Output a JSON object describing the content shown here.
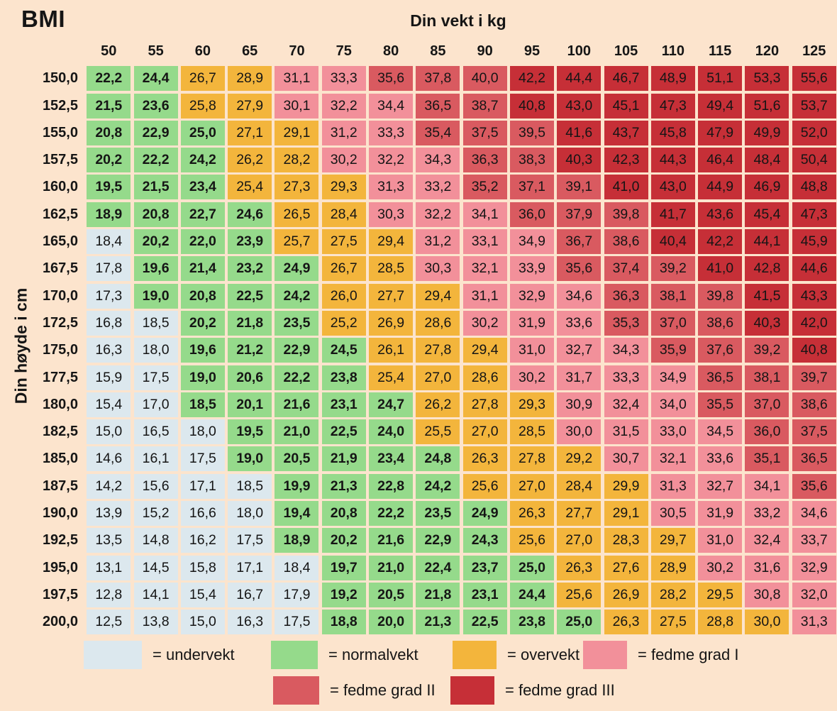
{
  "title": "BMI",
  "axes": {
    "weight": "Din vekt i kg",
    "height": "Din høyde i cm"
  },
  "colors": {
    "background": "#fce4cd",
    "undervekt": "#dce8ee",
    "normalvekt": "#95da8b",
    "overvekt": "#f3b53c",
    "fedme_grad_1": "#f2909a",
    "fedme_grad_2": "#d95a60",
    "fedme_grad_3": "#c62f37"
  },
  "legend": [
    {
      "label": "= undervekt",
      "category": "undervekt"
    },
    {
      "label": "= normalvekt",
      "category": "normalvekt"
    },
    {
      "label": "= overvekt",
      "category": "overvekt"
    },
    {
      "label": "= fedme grad I",
      "category": "fedme_grad_1"
    },
    {
      "label": "= fedme grad II",
      "category": "fedme_grad_2"
    },
    {
      "label": "= fedme grad III",
      "category": "fedme_grad_3"
    }
  ],
  "chart_data": {
    "type": "heatmap",
    "title": "BMI",
    "xlabel": "Din vekt i kg",
    "ylabel": "Din høyde i cm",
    "x": [
      "50",
      "55",
      "60",
      "65",
      "70",
      "75",
      "80",
      "85",
      "90",
      "95",
      "100",
      "105",
      "110",
      "115",
      "120",
      "125"
    ],
    "y": [
      "150,0",
      "152,5",
      "155,0",
      "157,5",
      "160,0",
      "162,5",
      "165,0",
      "167,5",
      "170,0",
      "172,5",
      "175,0",
      "177,5",
      "180,0",
      "182,5",
      "185,0",
      "187,5",
      "190,0",
      "192,5",
      "195,0",
      "197,5",
      "200,0"
    ],
    "category_codes": {
      "U": "undervekt",
      "N": "normalvekt",
      "O": "overvekt",
      "F1": "fedme_grad_1",
      "F2": "fedme_grad_2",
      "F3": "fedme_grad_3"
    },
    "matrix": [
      [
        "22,2",
        "24,4",
        "26,7",
        "28,9",
        "31,1",
        "33,3",
        "35,6",
        "37,8",
        "40,0",
        "42,2",
        "44,4",
        "46,7",
        "48,9",
        "51,1",
        "53,3",
        "55,6"
      ],
      [
        "21,5",
        "23,6",
        "25,8",
        "27,9",
        "30,1",
        "32,2",
        "34,4",
        "36,5",
        "38,7",
        "40,8",
        "43,0",
        "45,1",
        "47,3",
        "49,4",
        "51,6",
        "53,7"
      ],
      [
        "20,8",
        "22,9",
        "25,0",
        "27,1",
        "29,1",
        "31,2",
        "33,3",
        "35,4",
        "37,5",
        "39,5",
        "41,6",
        "43,7",
        "45,8",
        "47,9",
        "49,9",
        "52,0"
      ],
      [
        "20,2",
        "22,2",
        "24,2",
        "26,2",
        "28,2",
        "30,2",
        "32,2",
        "34,3",
        "36,3",
        "38,3",
        "40,3",
        "42,3",
        "44,3",
        "46,4",
        "48,4",
        "50,4"
      ],
      [
        "19,5",
        "21,5",
        "23,4",
        "25,4",
        "27,3",
        "29,3",
        "31,3",
        "33,2",
        "35,2",
        "37,1",
        "39,1",
        "41,0",
        "43,0",
        "44,9",
        "46,9",
        "48,8"
      ],
      [
        "18,9",
        "20,8",
        "22,7",
        "24,6",
        "26,5",
        "28,4",
        "30,3",
        "32,2",
        "34,1",
        "36,0",
        "37,9",
        "39,8",
        "41,7",
        "43,6",
        "45,4",
        "47,3"
      ],
      [
        "18,4",
        "20,2",
        "22,0",
        "23,9",
        "25,7",
        "27,5",
        "29,4",
        "31,2",
        "33,1",
        "34,9",
        "36,7",
        "38,6",
        "40,4",
        "42,2",
        "44,1",
        "45,9"
      ],
      [
        "17,8",
        "19,6",
        "21,4",
        "23,2",
        "24,9",
        "26,7",
        "28,5",
        "30,3",
        "32,1",
        "33,9",
        "35,6",
        "37,4",
        "39,2",
        "41,0",
        "42,8",
        "44,6"
      ],
      [
        "17,3",
        "19,0",
        "20,8",
        "22,5",
        "24,2",
        "26,0",
        "27,7",
        "29,4",
        "31,1",
        "32,9",
        "34,6",
        "36,3",
        "38,1",
        "39,8",
        "41,5",
        "43,3"
      ],
      [
        "16,8",
        "18,5",
        "20,2",
        "21,8",
        "23,5",
        "25,2",
        "26,9",
        "28,6",
        "30,2",
        "31,9",
        "33,6",
        "35,3",
        "37,0",
        "38,6",
        "40,3",
        "42,0"
      ],
      [
        "16,3",
        "18,0",
        "19,6",
        "21,2",
        "22,9",
        "24,5",
        "26,1",
        "27,8",
        "29,4",
        "31,0",
        "32,7",
        "34,3",
        "35,9",
        "37,6",
        "39,2",
        "40,8"
      ],
      [
        "15,9",
        "17,5",
        "19,0",
        "20,6",
        "22,2",
        "23,8",
        "25,4",
        "27,0",
        "28,6",
        "30,2",
        "31,7",
        "33,3",
        "34,9",
        "36,5",
        "38,1",
        "39,7"
      ],
      [
        "15,4",
        "17,0",
        "18,5",
        "20,1",
        "21,6",
        "23,1",
        "24,7",
        "26,2",
        "27,8",
        "29,3",
        "30,9",
        "32,4",
        "34,0",
        "35,5",
        "37,0",
        "38,6"
      ],
      [
        "15,0",
        "16,5",
        "18,0",
        "19,5",
        "21,0",
        "22,5",
        "24,0",
        "25,5",
        "27,0",
        "28,5",
        "30,0",
        "31,5",
        "33,0",
        "34,5",
        "36,0",
        "37,5"
      ],
      [
        "14,6",
        "16,1",
        "17,5",
        "19,0",
        "20,5",
        "21,9",
        "23,4",
        "24,8",
        "26,3",
        "27,8",
        "29,2",
        "30,7",
        "32,1",
        "33,6",
        "35,1",
        "36,5"
      ],
      [
        "14,2",
        "15,6",
        "17,1",
        "18,5",
        "19,9",
        "21,3",
        "22,8",
        "24,2",
        "25,6",
        "27,0",
        "28,4",
        "29,9",
        "31,3",
        "32,7",
        "34,1",
        "35,6"
      ],
      [
        "13,9",
        "15,2",
        "16,6",
        "18,0",
        "19,4",
        "20,8",
        "22,2",
        "23,5",
        "24,9",
        "26,3",
        "27,7",
        "29,1",
        "30,5",
        "31,9",
        "33,2",
        "34,6"
      ],
      [
        "13,5",
        "14,8",
        "16,2",
        "17,5",
        "18,9",
        "20,2",
        "21,6",
        "22,9",
        "24,3",
        "25,6",
        "27,0",
        "28,3",
        "29,7",
        "31,0",
        "32,4",
        "33,7"
      ],
      [
        "13,1",
        "14,5",
        "15,8",
        "17,1",
        "18,4",
        "19,7",
        "21,0",
        "22,4",
        "23,7",
        "25,0",
        "26,3",
        "27,6",
        "28,9",
        "30,2",
        "31,6",
        "32,9"
      ],
      [
        "12,8",
        "14,1",
        "15,4",
        "16,7",
        "17,9",
        "19,2",
        "20,5",
        "21,8",
        "23,1",
        "24,4",
        "25,6",
        "26,9",
        "28,2",
        "29,5",
        "30,8",
        "32,0"
      ],
      [
        "12,5",
        "13,8",
        "15,0",
        "16,3",
        "17,5",
        "18,8",
        "20,0",
        "21,3",
        "22,5",
        "23,8",
        "25,0",
        "26,3",
        "27,5",
        "28,8",
        "30,0",
        "31,3"
      ]
    ],
    "category_matrix": [
      [
        "N",
        "N",
        "O",
        "O",
        "F1",
        "F1",
        "F2",
        "F2",
        "F2",
        "F3",
        "F3",
        "F3",
        "F3",
        "F3",
        "F3",
        "F3"
      ],
      [
        "N",
        "N",
        "O",
        "O",
        "F1",
        "F1",
        "F1",
        "F2",
        "F2",
        "F3",
        "F3",
        "F3",
        "F3",
        "F3",
        "F3",
        "F3"
      ],
      [
        "N",
        "N",
        "N",
        "O",
        "O",
        "F1",
        "F1",
        "F2",
        "F2",
        "F2",
        "F3",
        "F3",
        "F3",
        "F3",
        "F3",
        "F3"
      ],
      [
        "N",
        "N",
        "N",
        "O",
        "O",
        "F1",
        "F1",
        "F1",
        "F2",
        "F2",
        "F3",
        "F3",
        "F3",
        "F3",
        "F3",
        "F3"
      ],
      [
        "N",
        "N",
        "N",
        "O",
        "O",
        "O",
        "F1",
        "F1",
        "F2",
        "F2",
        "F2",
        "F3",
        "F3",
        "F3",
        "F3",
        "F3"
      ],
      [
        "N",
        "N",
        "N",
        "N",
        "O",
        "O",
        "F1",
        "F1",
        "F1",
        "F2",
        "F2",
        "F2",
        "F3",
        "F3",
        "F3",
        "F3"
      ],
      [
        "U",
        "N",
        "N",
        "N",
        "O",
        "O",
        "O",
        "F1",
        "F1",
        "F1",
        "F2",
        "F2",
        "F3",
        "F3",
        "F3",
        "F3"
      ],
      [
        "U",
        "N",
        "N",
        "N",
        "N",
        "O",
        "O",
        "F1",
        "F1",
        "F1",
        "F2",
        "F2",
        "F2",
        "F3",
        "F3",
        "F3"
      ],
      [
        "U",
        "N",
        "N",
        "N",
        "N",
        "O",
        "O",
        "O",
        "F1",
        "F1",
        "F1",
        "F2",
        "F2",
        "F2",
        "F3",
        "F3"
      ],
      [
        "U",
        "U",
        "N",
        "N",
        "N",
        "O",
        "O",
        "O",
        "F1",
        "F1",
        "F1",
        "F2",
        "F2",
        "F2",
        "F3",
        "F3"
      ],
      [
        "U",
        "U",
        "N",
        "N",
        "N",
        "N",
        "O",
        "O",
        "O",
        "F1",
        "F1",
        "F1",
        "F2",
        "F2",
        "F2",
        "F3"
      ],
      [
        "U",
        "U",
        "N",
        "N",
        "N",
        "N",
        "O",
        "O",
        "O",
        "F1",
        "F1",
        "F1",
        "F1",
        "F2",
        "F2",
        "F2"
      ],
      [
        "U",
        "U",
        "N",
        "N",
        "N",
        "N",
        "N",
        "O",
        "O",
        "O",
        "F1",
        "F1",
        "F1",
        "F2",
        "F2",
        "F2"
      ],
      [
        "U",
        "U",
        "U",
        "N",
        "N",
        "N",
        "N",
        "O",
        "O",
        "O",
        "F1",
        "F1",
        "F1",
        "F1",
        "F2",
        "F2"
      ],
      [
        "U",
        "U",
        "U",
        "N",
        "N",
        "N",
        "N",
        "N",
        "O",
        "O",
        "O",
        "F1",
        "F1",
        "F1",
        "F2",
        "F2"
      ],
      [
        "U",
        "U",
        "U",
        "U",
        "N",
        "N",
        "N",
        "N",
        "O",
        "O",
        "O",
        "O",
        "F1",
        "F1",
        "F1",
        "F2"
      ],
      [
        "U",
        "U",
        "U",
        "U",
        "N",
        "N",
        "N",
        "N",
        "N",
        "O",
        "O",
        "O",
        "F1",
        "F1",
        "F1",
        "F1"
      ],
      [
        "U",
        "U",
        "U",
        "U",
        "N",
        "N",
        "N",
        "N",
        "N",
        "O",
        "O",
        "O",
        "O",
        "F1",
        "F1",
        "F1"
      ],
      [
        "U",
        "U",
        "U",
        "U",
        "U",
        "N",
        "N",
        "N",
        "N",
        "N",
        "O",
        "O",
        "O",
        "F1",
        "F1",
        "F1"
      ],
      [
        "U",
        "U",
        "U",
        "U",
        "U",
        "N",
        "N",
        "N",
        "N",
        "N",
        "O",
        "O",
        "O",
        "O",
        "F1",
        "F1"
      ],
      [
        "U",
        "U",
        "U",
        "U",
        "U",
        "N",
        "N",
        "N",
        "N",
        "N",
        "N",
        "O",
        "O",
        "O",
        "O",
        "F1"
      ]
    ]
  }
}
